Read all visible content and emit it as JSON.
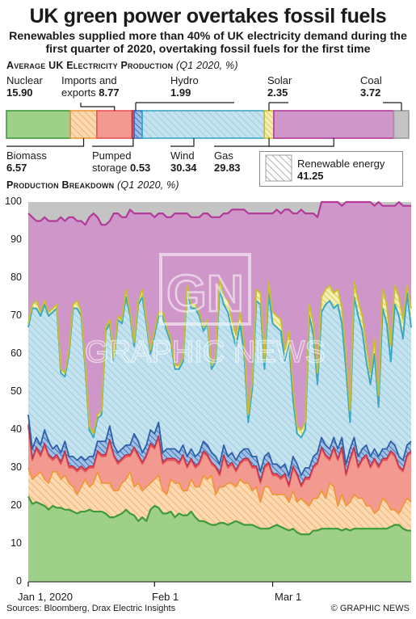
{
  "title": "UK green power overtakes fossil fuels",
  "subtitle": "Renewables supplied more than 40% of UK electricity demand during the first quarter of 2020, overtaking fossil fuels for the first time",
  "section1": {
    "title": "Average UK Electricity Production",
    "sub": "(Q1 2020, %)"
  },
  "section2": {
    "title": "Production Breakdown",
    "sub": "(Q1 2020, %)"
  },
  "legend": {
    "label": "Renewable energy",
    "value": "41.25"
  },
  "source": "Sources: Bloomberg, Drax Electric Insights",
  "credit": "© GRAPHIC NEWS",
  "watermark": {
    "logo": "GN",
    "text": "GRAPHIC NEWS"
  },
  "colors": {
    "nuclear": "#9fd08a",
    "biomass": "#f6c28e",
    "imports": "#f39a90",
    "pumped": "#e0506a",
    "hydro": "#3a73b8",
    "wind": "#bfe0ec",
    "solar": "#e9e08a",
    "gas": "#cf97c9",
    "coal": "#c4c4c4",
    "nuclear_line": "#3f9a3a",
    "biomass_line": "#f0963a",
    "imports_line": "#e8555a",
    "wind_line": "#3aa7c4",
    "solar_line": "#c9bf2e",
    "gas_line": "#b23a9a"
  },
  "chart_data": [
    {
      "type": "bar",
      "title": "Average UK Electricity Production",
      "subtitle": "(Q1 2020, %)",
      "categories": [
        "Nuclear",
        "Biomass",
        "Imports and exports",
        "Pumped storage",
        "Hydro",
        "Wind",
        "Solar",
        "Gas",
        "Coal"
      ],
      "values": [
        15.9,
        6.57,
        8.77,
        0.53,
        1.99,
        30.34,
        2.35,
        29.83,
        3.72
      ],
      "labels": [
        {
          "name": "Nuclear",
          "value": "15.90"
        },
        {
          "name": "Biomass",
          "value": "6.57"
        },
        {
          "name": "Imports and exports",
          "value": "8.77"
        },
        {
          "name": "Pumped storage",
          "value": "0.53"
        },
        {
          "name": "Hydro",
          "value": "1.99"
        },
        {
          "name": "Wind",
          "value": "30.34"
        },
        {
          "name": "Solar",
          "value": "2.35"
        },
        {
          "name": "Gas",
          "value": "29.83"
        },
        {
          "name": "Coal",
          "value": "3.72"
        }
      ]
    },
    {
      "type": "area",
      "title": "Production Breakdown",
      "subtitle": "(Q1 2020, %)",
      "x_start": "2020-01-01",
      "x_ticks": [
        "Jan 1, 2020",
        "Feb 1",
        "Mar 1"
      ],
      "ylim": [
        0,
        100
      ],
      "y_ticks": [
        0,
        10,
        20,
        30,
        40,
        50,
        60,
        70,
        80,
        90,
        100
      ],
      "cumulative_boundaries": {
        "nuclear": [
          22.5,
          20.5,
          21,
          20.5,
          20,
          19,
          20,
          19.5,
          19.5,
          19,
          19,
          18.5,
          18,
          18.5,
          18.5,
          19,
          18.5,
          18.5,
          18.5,
          18,
          17,
          17,
          17.5,
          18,
          19,
          18,
          17.5,
          16,
          17,
          16,
          19,
          20,
          19.5,
          18,
          18,
          18.5,
          17,
          18,
          17.5,
          17.5,
          18.5,
          17,
          16,
          16,
          15.5,
          15,
          15,
          15.5,
          15.5,
          15,
          15.5,
          16,
          15.5,
          15,
          15,
          15,
          14.5,
          14,
          14,
          14,
          14.5,
          15,
          14.5,
          14,
          13.5,
          14,
          13,
          12.5,
          12.5,
          12.5,
          13.5,
          13.5,
          14,
          14,
          14,
          14,
          14,
          13.5,
          14,
          13.5,
          14,
          14,
          14,
          14,
          14,
          14,
          14,
          14,
          14,
          14.5,
          15,
          15,
          14,
          13.5,
          13.5
        ],
        "biomass": [
          30,
          27,
          28,
          29,
          27,
          26,
          29,
          29,
          27,
          28,
          26,
          25,
          23,
          25,
          27,
          25,
          26,
          29,
          26,
          26,
          26,
          24,
          24,
          26,
          27,
          29,
          25,
          26,
          24,
          25,
          26,
          27,
          28,
          24,
          23,
          27,
          26,
          26,
          24,
          24,
          27,
          25,
          25,
          28,
          27,
          28,
          23,
          25,
          25,
          26,
          26,
          25,
          27,
          26,
          26,
          24,
          25,
          21,
          25,
          25,
          23,
          23,
          23,
          23,
          21,
          24,
          21,
          22,
          21,
          20,
          22,
          22,
          24,
          22,
          26,
          25,
          20,
          23,
          20,
          21,
          23,
          22,
          22,
          20,
          20,
          18,
          19,
          22,
          21,
          19,
          19,
          18,
          20,
          22,
          21,
          22
        ],
        "imports": [
          41,
          32,
          35,
          33,
          36,
          33,
          32,
          33,
          31,
          34,
          30,
          30,
          29,
          30,
          29,
          30,
          30,
          34,
          33,
          33,
          37,
          33,
          31,
          32,
          33,
          33,
          35,
          33,
          31,
          33,
          36,
          35,
          38,
          31,
          32,
          32,
          32,
          31,
          33,
          30,
          32,
          30,
          31,
          34,
          33,
          31,
          30,
          28,
          33,
          30,
          31,
          29,
          31,
          32,
          32,
          30,
          30,
          26,
          30,
          31,
          28,
          28,
          27,
          28,
          25,
          30,
          28,
          25,
          27,
          27,
          30,
          31,
          35,
          33,
          32,
          35,
          32,
          35,
          28,
          32,
          35,
          30,
          32,
          33,
          30,
          32,
          30,
          32,
          32,
          34,
          33,
          30,
          29,
          33,
          34,
          34
        ],
        "pumped": [
          41.5,
          32.5,
          35.5,
          33.5,
          36.5,
          33.5,
          32.5,
          33.5,
          31.5,
          34.5,
          30.5,
          30.5,
          29.5,
          30.5,
          29.5,
          30.5,
          30.5,
          34.5,
          33.5,
          33.5,
          37.5,
          33.5,
          31.5,
          32.5,
          33.5,
          33.5,
          35.5,
          33.5,
          31.5,
          33.5,
          36.5,
          35.5,
          38.5,
          31.5,
          32.5,
          32.5,
          32.5,
          31.5,
          33.5,
          30.5,
          32.5,
          30.5,
          31.5,
          34.5,
          33.5,
          31.5,
          30.5,
          28.5,
          33.5,
          30.5,
          31.5,
          29.5,
          31.5,
          32.5,
          32.5,
          30.5,
          30.5,
          26.5,
          30.5,
          31.5,
          28.5,
          28.5,
          27.5,
          28.5,
          25.5,
          30.5,
          28.5,
          25.5,
          27.5,
          27.5,
          30.5,
          31.5,
          35.5,
          33.5,
          32.5,
          35.5,
          32.5,
          35.5,
          28.5,
          32.5,
          35.5,
          30.5,
          32.5,
          33.5,
          30.5,
          32.5,
          30.5,
          32.5,
          32.5,
          34.5,
          33.5,
          30.5,
          29.5,
          33.5,
          34.5,
          34.5
        ],
        "hydro": [
          44,
          35,
          38,
          36,
          40,
          37,
          35,
          36,
          34,
          37,
          33,
          33,
          32,
          33,
          32,
          33,
          33,
          37,
          37,
          37,
          41,
          36,
          34,
          35,
          36,
          36,
          39,
          37,
          34,
          36,
          40,
          39,
          42,
          34,
          35,
          35,
          35,
          34,
          36,
          33,
          35,
          33,
          34,
          37,
          36,
          34,
          33,
          31,
          36,
          33,
          34,
          32,
          34,
          35,
          35,
          33,
          33,
          29,
          33,
          34,
          31,
          31,
          30,
          31,
          28,
          33,
          31,
          28,
          30,
          30,
          33,
          34,
          38,
          36,
          35,
          38,
          35,
          38,
          31,
          35,
          38,
          33,
          35,
          36,
          33,
          35,
          33,
          35,
          35,
          37,
          36,
          33,
          32,
          36,
          37,
          37
        ],
        "wind": [
          67,
          72,
          72,
          70,
          73,
          70,
          71,
          72,
          55,
          54,
          60,
          72,
          72,
          70,
          56,
          40,
          38,
          43,
          44,
          66,
          68,
          58,
          69,
          68,
          75,
          70,
          62,
          73,
          75,
          68,
          60,
          65,
          70,
          70,
          66,
          63,
          56,
          56,
          58,
          77,
          72,
          72,
          70,
          66,
          68,
          56,
          58,
          77,
          73,
          71,
          66,
          62,
          68,
          60,
          42,
          51,
          74,
          73,
          56,
          76,
          68,
          67,
          66,
          58,
          63,
          48,
          39,
          38,
          40,
          70,
          65,
          52,
          71,
          73,
          74,
          72,
          73,
          68,
          56,
          42,
          75,
          70,
          66,
          58,
          52,
          60,
          46,
          72,
          68,
          58,
          73,
          70,
          64,
          76,
          67,
          50
        ],
        "solar": [
          67.5,
          72.5,
          73,
          70.5,
          73.5,
          70.5,
          71.5,
          72.5,
          55.5,
          54.5,
          60.5,
          72.5,
          73,
          70.5,
          56.5,
          40.5,
          38.5,
          43.5,
          44.5,
          66.5,
          68.5,
          58.5,
          69.5,
          68.5,
          76,
          70.5,
          62.5,
          73.5,
          76,
          68.5,
          60.5,
          65.5,
          70.5,
          70.5,
          66.5,
          63.5,
          56.5,
          56.5,
          58.5,
          77.5,
          72.5,
          72.5,
          70.5,
          66.5,
          68.5,
          56.5,
          58.5,
          78,
          73.5,
          72,
          67,
          63,
          69,
          61,
          43,
          52,
          75,
          74,
          57,
          77,
          69,
          68,
          67,
          59,
          64,
          49,
          40,
          39,
          41,
          71,
          66,
          53,
          72,
          74,
          75,
          73,
          74,
          69,
          57,
          43,
          76,
          71,
          67,
          59,
          53,
          61,
          47,
          73,
          69,
          59,
          74,
          71,
          65,
          77,
          68,
          51
        ],
        "solar_top": [
          68,
          73,
          74,
          71,
          74,
          71,
          72,
          73,
          56,
          55,
          61,
          73,
          74,
          71,
          57,
          41,
          39,
          44,
          45,
          67,
          69,
          59,
          70,
          69,
          77,
          71,
          63,
          74,
          77,
          69,
          61,
          66,
          71,
          71,
          67,
          64,
          57,
          57,
          59,
          78,
          73,
          73,
          71,
          67,
          69,
          57,
          59,
          80,
          75,
          74,
          69,
          65,
          71,
          63,
          44,
          53,
          77,
          76,
          58,
          79,
          71,
          70,
          69,
          61,
          66,
          51,
          41,
          40,
          42,
          73,
          68,
          55,
          75,
          77,
          78,
          76,
          77,
          72,
          60,
          45,
          79,
          74,
          70,
          62,
          55,
          64,
          49,
          77,
          73,
          62,
          78,
          75,
          69,
          78,
          72,
          56
        ],
        "gas": [
          97,
          96,
          95,
          95,
          96,
          95,
          95,
          95,
          96,
          95,
          96,
          96,
          95,
          95,
          94,
          96,
          97,
          96,
          94,
          94,
          95,
          97,
          97,
          96,
          96,
          98,
          97,
          97,
          97,
          97,
          97,
          96,
          97,
          97,
          96,
          96,
          97,
          97,
          97,
          97,
          96,
          96,
          96,
          97,
          97,
          96,
          96,
          96,
          97,
          97,
          98,
          98,
          98,
          98,
          97,
          97,
          97,
          97,
          97,
          97,
          97,
          98,
          97,
          98,
          98,
          97,
          97,
          98,
          97,
          97,
          97,
          96,
          100,
          100,
          100,
          100,
          100,
          99,
          100,
          100,
          100,
          100,
          100,
          100,
          100,
          99,
          100,
          99,
          99,
          99,
          99,
          100,
          99,
          99,
          99,
          99
        ]
      },
      "series": [
        {
          "name": "Nuclear"
        },
        {
          "name": "Biomass"
        },
        {
          "name": "Imports and exports"
        },
        {
          "name": "Pumped storage"
        },
        {
          "name": "Hydro"
        },
        {
          "name": "Wind"
        },
        {
          "name": "Solar"
        },
        {
          "name": "Gas"
        },
        {
          "name": "Coal"
        }
      ]
    }
  ]
}
